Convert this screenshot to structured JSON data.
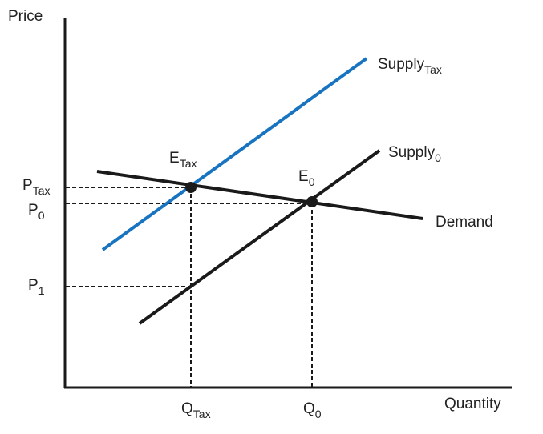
{
  "axes": {
    "y_label": "Price",
    "x_label": "Quantity"
  },
  "curves": {
    "supply_tax": {
      "label": "Supply",
      "label_sub": "Tax",
      "color": "#1874c0"
    },
    "supply_0": {
      "label": "Supply",
      "label_sub": "0",
      "color": "#1a1a1a"
    },
    "demand": {
      "label": "Demand",
      "color": "#1a1a1a"
    }
  },
  "points": {
    "e_tax": {
      "label": "E",
      "label_sub": "Tax"
    },
    "e_0": {
      "label": "E",
      "label_sub": "0"
    }
  },
  "price_ticks": {
    "p_tax": {
      "label": "P",
      "label_sub": "Tax"
    },
    "p_0": {
      "label": "P",
      "label_sub": "0"
    },
    "p_1": {
      "label": "P",
      "label_sub": "1"
    }
  },
  "quantity_ticks": {
    "q_tax": {
      "label": "Q",
      "label_sub": "Tax"
    },
    "q_0": {
      "label": "Q",
      "label_sub": "0"
    }
  }
}
